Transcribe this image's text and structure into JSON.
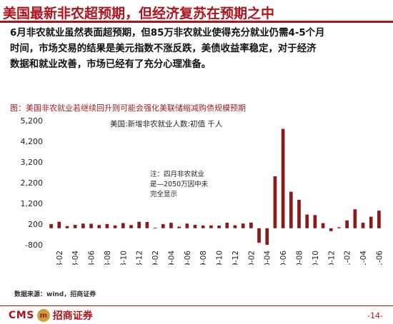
{
  "page": {
    "title": "美国最新非农超预期，但经济复苏在预期之中",
    "body_lines": [
      "6月非农就业虽然表面超预期，但85万非农就业使得充分就业仍需4-5个月",
      "时间，市场交易的结果是美元指数不涨反跌，美债收益率稳定，对于经济",
      "数据和就业改善，市场已经有了充分心理准备。"
    ],
    "source": "数据来源：wind，招商证券",
    "logo_en": "CMS",
    "logo_cn": "招商证券",
    "page_number": "-14-",
    "colors": {
      "brand": "#b0121b",
      "bar": "#8b1a1a"
    }
  },
  "chart_data": {
    "type": "bar",
    "title": "图：美国非农就业若继续回升则可能会强化美联储缩减购债规模预期",
    "legend": "美国:新增非农就业人数:初值 千人",
    "annotation_lines": [
      "注：四月非农就业",
      "是—2050万因中未",
      "完全显示"
    ],
    "yticks": [
      5200,
      4200,
      3200,
      2200,
      1200,
      200,
      -800
    ],
    "ylim": [
      -800,
      5200
    ],
    "x_tick_labels": [
      "2018-02",
      "2018-04",
      "2018-06",
      "2018-08",
      "2018-10",
      "2018-12",
      "2019-02",
      "2019-04",
      "2019-06",
      "2019-08",
      "2019-10",
      "2019-12",
      "2020-02",
      "2020-04",
      "2020-06",
      "2020-08",
      "2020-10",
      "2020-12",
      "2021-02",
      "2021-04",
      "2021-06"
    ],
    "categories": [
      "2018-01",
      "2018-02",
      "2018-03",
      "2018-04",
      "2018-05",
      "2018-06",
      "2018-07",
      "2018-08",
      "2018-09",
      "2018-10",
      "2018-11",
      "2018-12",
      "2019-01",
      "2019-02",
      "2019-03",
      "2019-04",
      "2019-05",
      "2019-06",
      "2019-07",
      "2019-08",
      "2019-09",
      "2019-10",
      "2019-11",
      "2019-12",
      "2020-01",
      "2020-02",
      "2020-03",
      "2020-04",
      "2020-05",
      "2020-06",
      "2020-07",
      "2020-08",
      "2020-09",
      "2020-10",
      "2020-11",
      "2020-12",
      "2021-01",
      "2021-02",
      "2021-03",
      "2021-04",
      "2021-05",
      "2021-06"
    ],
    "values": [
      200,
      313,
      103,
      164,
      223,
      213,
      157,
      201,
      134,
      250,
      155,
      312,
      304,
      20,
      196,
      263,
      75,
      224,
      164,
      130,
      136,
      128,
      266,
      145,
      225,
      273,
      -701,
      -800,
      2509,
      4800,
      1763,
      1371,
      661,
      638,
      245,
      -140,
      49,
      379,
      916,
      266,
      559,
      850
    ]
  }
}
